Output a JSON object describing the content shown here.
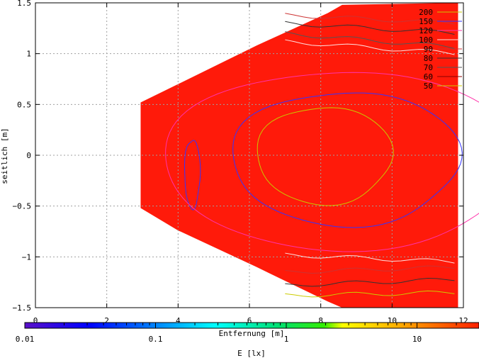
{
  "chart_data": {
    "type": "heatmap",
    "title": "",
    "xlabel": "Entfernung [m]",
    "ylabel": "seitlich [m]",
    "colorbar_label": "E [lx]",
    "x_ticks": [
      "0",
      "2",
      "4",
      "6",
      "8",
      "10",
      "12"
    ],
    "y_ticks": [
      "1.5",
      "1",
      "0.5",
      "0",
      "−0.5",
      "−1",
      "−1.5"
    ],
    "colorbar_ticks": [
      "0.01",
      "0.1",
      "1",
      "10"
    ],
    "colorbar_scale": "log",
    "xlim": [
      0,
      12
    ],
    "ylim": [
      -1.5,
      1.5
    ],
    "grid": true,
    "legend_position": "top-right",
    "field_color": "#ff1a0a",
    "contour_levels": [
      {
        "label": "200",
        "color": "#c8c800"
      },
      {
        "label": "150",
        "color": "#3333ff"
      },
      {
        "label": "120",
        "color": "#ff33aa"
      },
      {
        "label": "100",
        "color": "#ffe0e0"
      },
      {
        "label": "90",
        "color": "#cc3333"
      },
      {
        "label": "80",
        "color": "#333333"
      },
      {
        "label": "70",
        "color": "#555555"
      },
      {
        "label": "60",
        "color": "#880000"
      },
      {
        "label": "50",
        "color": "#cccc00"
      }
    ]
  }
}
